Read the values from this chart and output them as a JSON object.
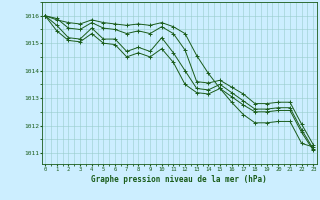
{
  "title": "Graphe pression niveau de la mer (hPa)",
  "background_color": "#cceeff",
  "plot_bg_color": "#cceeff",
  "grid_color": "#99cccc",
  "line_color": "#1a5c1a",
  "xlim_min": -0.3,
  "xlim_max": 23.3,
  "ylim": [
    1010.6,
    1016.5
  ],
  "yticks": [
    1011,
    1012,
    1013,
    1014,
    1015,
    1016
  ],
  "xticks": [
    0,
    1,
    2,
    3,
    4,
    5,
    6,
    7,
    8,
    9,
    10,
    11,
    12,
    13,
    14,
    15,
    16,
    17,
    18,
    19,
    20,
    21,
    22,
    23
  ],
  "series": [
    [
      1016.0,
      1015.9,
      1015.55,
      1015.5,
      1015.75,
      1015.55,
      1015.5,
      1015.35,
      1015.45,
      1015.35,
      1015.6,
      1015.35,
      1014.75,
      1013.6,
      1013.55,
      1013.65,
      1013.4,
      1013.15,
      1012.8,
      1012.8,
      1012.85,
      1012.85,
      1012.05,
      1011.3
    ],
    [
      1016.0,
      1015.65,
      1015.2,
      1015.15,
      1015.55,
      1015.15,
      1015.15,
      1014.7,
      1014.85,
      1014.7,
      1015.2,
      1014.65,
      1014.0,
      1013.35,
      1013.3,
      1013.5,
      1013.2,
      1012.9,
      1012.6,
      1012.6,
      1012.65,
      1012.65,
      1011.85,
      1011.15
    ],
    [
      1016.0,
      1015.45,
      1015.1,
      1015.05,
      1015.35,
      1015.0,
      1014.95,
      1014.5,
      1014.65,
      1014.5,
      1014.8,
      1014.3,
      1013.5,
      1013.2,
      1013.15,
      1013.35,
      1013.05,
      1012.75,
      1012.5,
      1012.5,
      1012.55,
      1012.55,
      1011.75,
      1011.1
    ],
    [
      1016.0,
      1015.85,
      1015.75,
      1015.7,
      1015.85,
      1015.75,
      1015.7,
      1015.65,
      1015.7,
      1015.65,
      1015.75,
      1015.6,
      1015.35,
      1014.55,
      1013.9,
      1013.35,
      1012.85,
      1012.4,
      1012.1,
      1012.1,
      1012.15,
      1012.15,
      1011.35,
      1011.22
    ]
  ]
}
